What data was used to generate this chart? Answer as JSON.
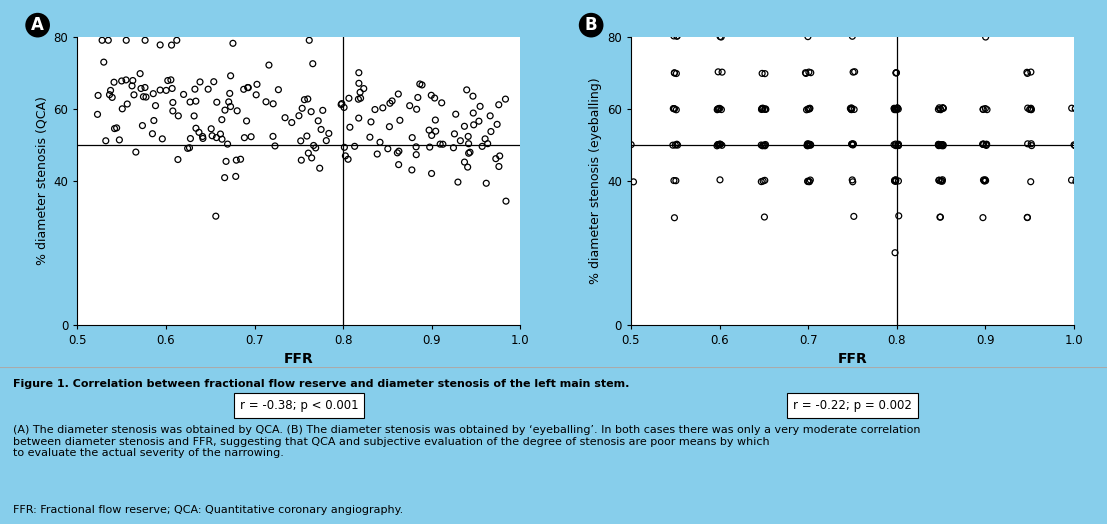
{
  "background_color": "#87CEEB",
  "plot_bg": "#FFFFFF",
  "fig_caption_bg": "#DCDCDC",
  "panel_A_label": "A",
  "panel_B_label": "B",
  "xlabel": "FFR",
  "ylabel_A": "% diameter stenosis (QCA)",
  "ylabel_B": "% diameter stenosis (eyeballing)",
  "xlim": [
    0.5,
    1.0
  ],
  "ylim": [
    0,
    80
  ],
  "xticks": [
    0.5,
    0.6,
    0.7,
    0.8,
    0.9,
    1.0
  ],
  "yticks": [
    0,
    40,
    60,
    80
  ],
  "vline_x": 0.8,
  "hline_y": 50,
  "annotation_A": "r = -0.38; p < 0.001",
  "annotation_B": "r = -0.22; p = 0.002",
  "marker_size": 18,
  "marker_facecolor": "none",
  "marker_edgecolor": "#000000",
  "marker_linewidth": 0.9,
  "caption_bold": "Figure 1. Correlation between fractional flow reserve and diameter stenosis of the left main stem.",
  "caption_normal": " (A) The diameter stenosis was obtained by QCA. (B) The diameter stenosis was obtained by ‘eyeballing’. In both cases there was only a very moderate correlation between diameter stenosis and FFR, suggesting that QCA and subjective evaluation of the degree of stenosis are poor means by which to evaluate the actual severity of the narrowing.",
  "caption_line2": "FFR: Fractional flow reserve; QCA: Quantitative coronary angiography.",
  "seed_A": 42,
  "seed_B": 123,
  "n_points_A": 200,
  "n_points_B": 200
}
